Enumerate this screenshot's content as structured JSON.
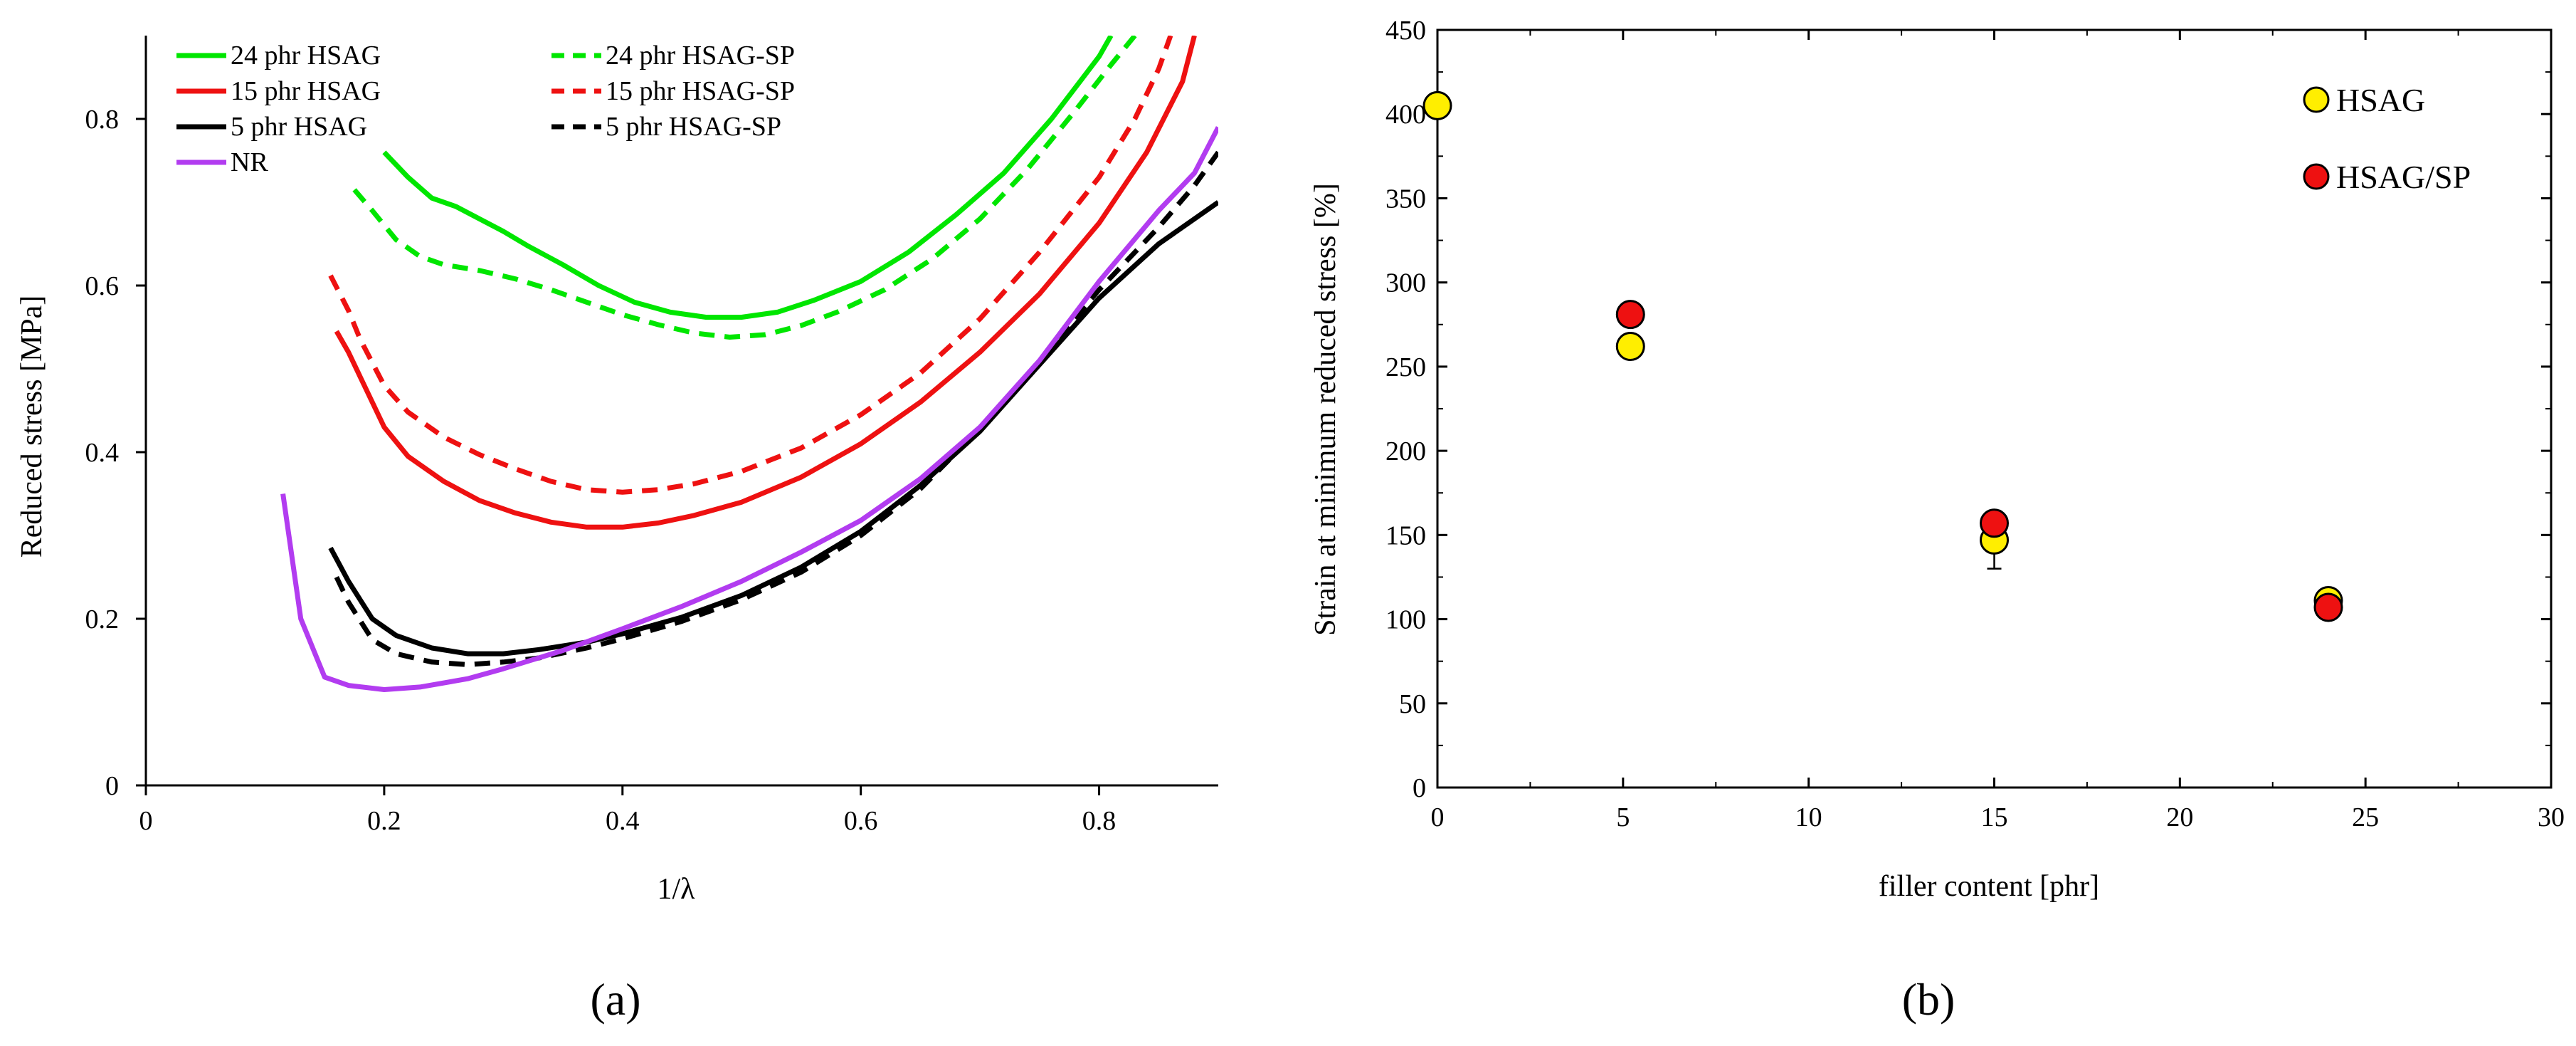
{
  "chart_data": [
    {
      "panel": "a",
      "type": "line",
      "xlabel": "1/λ",
      "ylabel": "Reduced stress [MPa]",
      "xlim": [
        0,
        0.9
      ],
      "ylim": [
        0,
        0.9
      ],
      "xticks": [
        0,
        0.2,
        0.4,
        0.6,
        0.8
      ],
      "xtick_labels": [
        "0",
        "0.2",
        "0.4",
        "0.6",
        "0.8"
      ],
      "yticks": [
        0,
        0.2,
        0.4,
        0.6,
        0.8
      ],
      "ytick_labels": [
        "0",
        "0.2",
        "0.4",
        "0.6",
        "0.8"
      ],
      "legend_position": "top-left",
      "series": [
        {
          "name": "24 phr HSAG",
          "color": "#00e600",
          "dash": "solid",
          "points": [
            [
              0.2,
              0.76
            ],
            [
              0.22,
              0.73
            ],
            [
              0.24,
              0.705
            ],
            [
              0.26,
              0.695
            ],
            [
              0.28,
              0.68
            ],
            [
              0.3,
              0.665
            ],
            [
              0.32,
              0.648
            ],
            [
              0.35,
              0.625
            ],
            [
              0.38,
              0.6
            ],
            [
              0.41,
              0.58
            ],
            [
              0.44,
              0.568
            ],
            [
              0.47,
              0.562
            ],
            [
              0.5,
              0.562
            ],
            [
              0.53,
              0.568
            ],
            [
              0.56,
              0.582
            ],
            [
              0.6,
              0.605
            ],
            [
              0.64,
              0.64
            ],
            [
              0.68,
              0.685
            ],
            [
              0.72,
              0.735
            ],
            [
              0.76,
              0.8
            ],
            [
              0.8,
              0.875
            ],
            [
              0.81,
              0.9
            ]
          ]
        },
        {
          "name": "24 phr HSAG-SP",
          "color": "#00e600",
          "dash": "dashed",
          "points": [
            [
              0.175,
              0.715
            ],
            [
              0.19,
              0.69
            ],
            [
              0.21,
              0.655
            ],
            [
              0.23,
              0.635
            ],
            [
              0.25,
              0.625
            ],
            [
              0.28,
              0.618
            ],
            [
              0.31,
              0.608
            ],
            [
              0.34,
              0.595
            ],
            [
              0.37,
              0.58
            ],
            [
              0.4,
              0.565
            ],
            [
              0.43,
              0.553
            ],
            [
              0.46,
              0.543
            ],
            [
              0.49,
              0.538
            ],
            [
              0.52,
              0.541
            ],
            [
              0.55,
              0.552
            ],
            [
              0.58,
              0.568
            ],
            [
              0.62,
              0.595
            ],
            [
              0.66,
              0.632
            ],
            [
              0.7,
              0.68
            ],
            [
              0.74,
              0.74
            ],
            [
              0.78,
              0.81
            ],
            [
              0.81,
              0.865
            ],
            [
              0.83,
              0.9
            ]
          ]
        },
        {
          "name": "15 phr HSAG",
          "color": "#ee1111",
          "dash": "solid",
          "points": [
            [
              0.16,
              0.545
            ],
            [
              0.17,
              0.52
            ],
            [
              0.18,
              0.49
            ],
            [
              0.2,
              0.43
            ],
            [
              0.22,
              0.395
            ],
            [
              0.25,
              0.365
            ],
            [
              0.28,
              0.342
            ],
            [
              0.31,
              0.327
            ],
            [
              0.34,
              0.316
            ],
            [
              0.37,
              0.31
            ],
            [
              0.4,
              0.31
            ],
            [
              0.43,
              0.315
            ],
            [
              0.46,
              0.324
            ],
            [
              0.5,
              0.34
            ],
            [
              0.55,
              0.37
            ],
            [
              0.6,
              0.41
            ],
            [
              0.65,
              0.46
            ],
            [
              0.7,
              0.52
            ],
            [
              0.75,
              0.59
            ],
            [
              0.8,
              0.675
            ],
            [
              0.84,
              0.76
            ],
            [
              0.87,
              0.845
            ],
            [
              0.88,
              0.9
            ]
          ]
        },
        {
          "name": "15 phr HSAG-SP",
          "color": "#ee1111",
          "dash": "dashed",
          "points": [
            [
              0.155,
              0.612
            ],
            [
              0.17,
              0.57
            ],
            [
              0.18,
              0.535
            ],
            [
              0.2,
              0.48
            ],
            [
              0.22,
              0.448
            ],
            [
              0.25,
              0.418
            ],
            [
              0.28,
              0.397
            ],
            [
              0.31,
              0.38
            ],
            [
              0.34,
              0.365
            ],
            [
              0.37,
              0.355
            ],
            [
              0.4,
              0.352
            ],
            [
              0.43,
              0.355
            ],
            [
              0.46,
              0.362
            ],
            [
              0.5,
              0.377
            ],
            [
              0.55,
              0.405
            ],
            [
              0.6,
              0.445
            ],
            [
              0.65,
              0.495
            ],
            [
              0.7,
              0.56
            ],
            [
              0.75,
              0.64
            ],
            [
              0.8,
              0.73
            ],
            [
              0.83,
              0.8
            ],
            [
              0.85,
              0.86
            ],
            [
              0.86,
              0.9
            ]
          ]
        },
        {
          "name": "5 phr HSAG",
          "color": "#000000",
          "dash": "solid",
          "points": [
            [
              0.155,
              0.285
            ],
            [
              0.17,
              0.245
            ],
            [
              0.19,
              0.2
            ],
            [
              0.21,
              0.18
            ],
            [
              0.24,
              0.165
            ],
            [
              0.27,
              0.158
            ],
            [
              0.3,
              0.158
            ],
            [
              0.33,
              0.163
            ],
            [
              0.37,
              0.172
            ],
            [
              0.4,
              0.182
            ],
            [
              0.45,
              0.202
            ],
            [
              0.5,
              0.228
            ],
            [
              0.55,
              0.262
            ],
            [
              0.6,
              0.305
            ],
            [
              0.65,
              0.36
            ],
            [
              0.7,
              0.425
            ],
            [
              0.75,
              0.505
            ],
            [
              0.8,
              0.585
            ],
            [
              0.85,
              0.65
            ],
            [
              0.9,
              0.7
            ]
          ]
        },
        {
          "name": "5 phr HSAG-SP",
          "color": "#000000",
          "dash": "dashed",
          "points": [
            [
              0.16,
              0.25
            ],
            [
              0.17,
              0.22
            ],
            [
              0.19,
              0.175
            ],
            [
              0.21,
              0.158
            ],
            [
              0.24,
              0.148
            ],
            [
              0.27,
              0.145
            ],
            [
              0.3,
              0.148
            ],
            [
              0.33,
              0.153
            ],
            [
              0.37,
              0.165
            ],
            [
              0.4,
              0.176
            ],
            [
              0.45,
              0.197
            ],
            [
              0.5,
              0.223
            ],
            [
              0.55,
              0.256
            ],
            [
              0.6,
              0.3
            ],
            [
              0.65,
              0.356
            ],
            [
              0.7,
              0.428
            ],
            [
              0.75,
              0.51
            ],
            [
              0.8,
              0.595
            ],
            [
              0.85,
              0.67
            ],
            [
              0.88,
              0.72
            ],
            [
              0.9,
              0.76
            ]
          ]
        },
        {
          "name": "NR",
          "color": "#b23cf0",
          "dash": "solid",
          "points": [
            [
              0.115,
              0.35
            ],
            [
              0.13,
              0.2
            ],
            [
              0.15,
              0.13
            ],
            [
              0.17,
              0.12
            ],
            [
              0.2,
              0.115
            ],
            [
              0.23,
              0.118
            ],
            [
              0.27,
              0.128
            ],
            [
              0.3,
              0.14
            ],
            [
              0.35,
              0.162
            ],
            [
              0.4,
              0.188
            ],
            [
              0.45,
              0.215
            ],
            [
              0.5,
              0.245
            ],
            [
              0.55,
              0.28
            ],
            [
              0.6,
              0.318
            ],
            [
              0.65,
              0.368
            ],
            [
              0.7,
              0.43
            ],
            [
              0.75,
              0.51
            ],
            [
              0.8,
              0.605
            ],
            [
              0.85,
              0.69
            ],
            [
              0.88,
              0.735
            ],
            [
              0.9,
              0.79
            ]
          ]
        }
      ]
    },
    {
      "panel": "b",
      "type": "scatter",
      "xlabel": "filler content [phr]",
      "ylabel": "Strain at minimum reduced stress [%]",
      "xlim": [
        0,
        30
      ],
      "ylim": [
        0,
        450
      ],
      "xticks": [
        0,
        5,
        10,
        15,
        20,
        25,
        30
      ],
      "xtick_labels": [
        "0",
        "5",
        "10",
        "15",
        "20",
        "25",
        "30"
      ],
      "yticks": [
        0,
        50,
        100,
        150,
        200,
        250,
        300,
        350,
        400,
        450
      ],
      "ytick_labels": [
        "0",
        "50",
        "100",
        "150",
        "200",
        "250",
        "300",
        "350",
        "400",
        "450"
      ],
      "legend_position": "top-right",
      "series": [
        {
          "name": "HSAG",
          "color": "#ffee00",
          "points": [
            [
              0,
              405
            ],
            [
              5.2,
              262
            ],
            [
              15,
              147
            ],
            [
              24,
              111
            ]
          ],
          "error_bars": [
            null,
            null,
            [
              130,
              147
            ],
            null
          ]
        },
        {
          "name": "HSAG/SP",
          "color": "#ee1111",
          "points": [
            [
              5.2,
              281
            ],
            [
              15,
              157
            ],
            [
              24,
              107
            ]
          ]
        }
      ]
    }
  ],
  "panel_labels": {
    "a": "(a)",
    "b": "(b)"
  }
}
